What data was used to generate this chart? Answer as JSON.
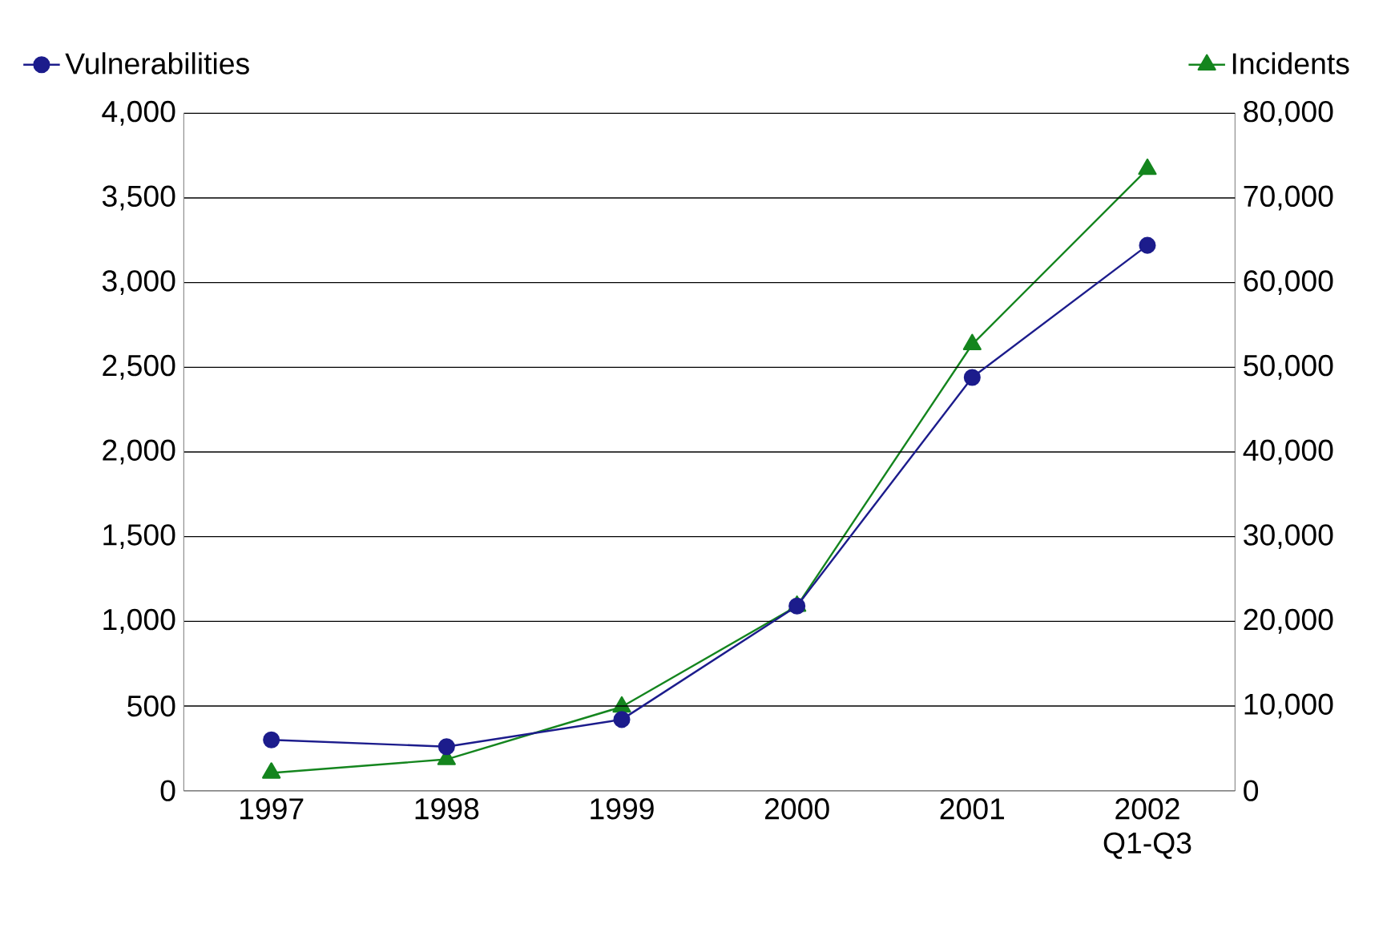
{
  "chart_data": {
    "type": "line",
    "categories": [
      "1997",
      "1998",
      "1999",
      "2000",
      "2001",
      "2002 Q1-Q3"
    ],
    "series": [
      {
        "name": "Vulnerabilities",
        "color": "#1c1c8c",
        "marker": "circle",
        "values": [
          300,
          260,
          420,
          1090,
          2440,
          3220
        ]
      },
      {
        "name": "Incidents",
        "color": "#14851e",
        "marker": "triangle",
        "axis": "y2",
        "values": [
          2100,
          3700,
          9900,
          21800,
          52700,
          73400
        ]
      }
    ],
    "ylim": [
      0,
      4000
    ],
    "yticks": [
      0,
      500,
      {
        "value": 1000,
        "label": "1,000"
      },
      {
        "value": 1500,
        "label": "1,500"
      },
      {
        "value": 2000,
        "label": "2,000"
      },
      {
        "value": 2500,
        "label": "2,500"
      },
      {
        "value": 3000,
        "label": "3,000"
      },
      {
        "value": 3500,
        "label": "3,500"
      },
      {
        "value": 4000,
        "label": "4,000"
      }
    ],
    "y2lim": [
      0,
      80000
    ],
    "y2ticks": [
      0,
      {
        "value": 10000,
        "label": "10,000"
      },
      {
        "value": 20000,
        "label": "20,000"
      },
      {
        "value": 30000,
        "label": "30,000"
      },
      {
        "value": 40000,
        "label": "40,000"
      },
      {
        "value": 50000,
        "label": "50,000"
      },
      {
        "value": 60000,
        "label": "60,000"
      },
      {
        "value": 70000,
        "label": "70,000"
      },
      {
        "value": 80000,
        "label": "80,000"
      }
    ],
    "grid": "y",
    "legend": "top",
    "line_style": "solid"
  }
}
